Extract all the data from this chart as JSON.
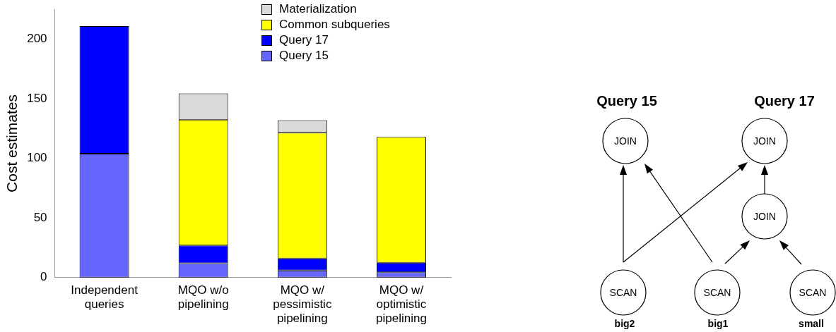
{
  "chart_data": [
    {
      "type": "bar",
      "stacked": true,
      "ylabel": "Cost estimates",
      "categories": [
        "Independent queries",
        "MQO w/o pipelining",
        "MQO w/ pessimistic pipelining",
        "MQO w/ optimistic pipelining"
      ],
      "series": [
        {
          "name": "Query 15",
          "color": "#6666ff",
          "values": [
            104,
            12,
            6,
            4.5
          ]
        },
        {
          "name": "Query 17",
          "color": "#0000ff",
          "values": [
            107,
            15,
            10,
            8
          ]
        },
        {
          "name": "Common subqueries",
          "color": "#ffff00",
          "values": [
            null,
            105.5,
            105.5,
            105.5
          ]
        },
        {
          "name": "Materialization",
          "color": "#d9d9d9",
          "values": [
            null,
            22,
            10.5,
            null
          ]
        }
      ],
      "ylim": [
        0,
        225
      ],
      "yticks": [
        0,
        50,
        100,
        150,
        200
      ],
      "grid": false,
      "legend": "top right"
    },
    {
      "type": "other",
      "annotations": [
        "Query 15",
        "Query 17",
        "JOIN",
        "JOIN",
        "JOIN",
        "SCAN",
        "SCAN",
        "SCAN",
        "big2",
        "big1",
        "small"
      ]
    }
  ]
}
